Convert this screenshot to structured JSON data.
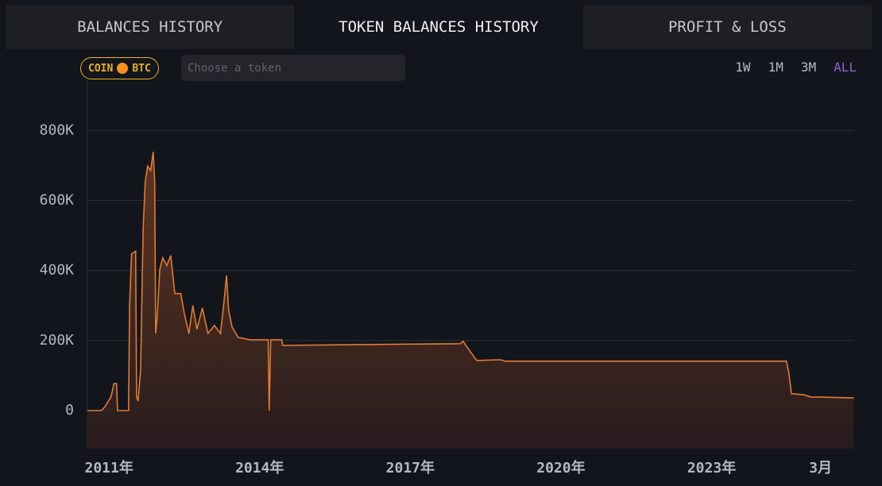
{
  "tabs": [
    "BALANCES HISTORY",
    "TOKEN BALANCES HISTORY",
    "PROFIT & LOSS"
  ],
  "badge": {
    "label": "COIN",
    "coin": "BTC"
  },
  "search_placeholder": "Choose a token",
  "ranges": [
    "1W",
    "1M",
    "3M",
    "ALL"
  ],
  "chart_data": {
    "type": "area",
    "color": "#e07b35",
    "grid": true,
    "x": [
      2010.57,
      2010.85,
      2010.92,
      2011.04,
      2011.1,
      2011.15,
      2011.17,
      2011.39,
      2011.41,
      2011.45,
      2011.53,
      2011.55,
      2011.58,
      2011.63,
      2011.68,
      2011.72,
      2011.77,
      2011.83,
      2011.88,
      2011.91,
      2011.93,
      2011.96,
      2012.01,
      2012.07,
      2012.15,
      2012.23,
      2012.31,
      2012.43,
      2012.5,
      2012.59,
      2012.67,
      2012.75,
      2012.86,
      2012.97,
      2013.1,
      2013.22,
      2013.29,
      2013.34,
      2013.38,
      2013.45,
      2013.57,
      2013.81,
      2014.05,
      2014.17,
      2014.19,
      2014.22,
      2014.44,
      2014.46,
      2016.42,
      2018.0,
      2018.05,
      2018.16,
      2018.32,
      2018.79,
      2018.89,
      2024.49,
      2024.54,
      2024.59,
      2024.84,
      2024.97,
      2025.83
    ],
    "values": [
      0,
      0,
      11000,
      39000,
      77000,
      77000,
      0,
      0,
      300000,
      448000,
      455000,
      39000,
      27000,
      118000,
      516000,
      652000,
      698000,
      686000,
      739000,
      652000,
      220000,
      266000,
      402000,
      436000,
      414000,
      443000,
      334000,
      334000,
      277000,
      220000,
      300000,
      232000,
      293000,
      220000,
      243000,
      220000,
      311000,
      386000,
      289000,
      239000,
      209000,
      202000,
      202000,
      202000,
      0,
      202000,
      202000,
      186000,
      189000,
      191000,
      198000,
      175000,
      143000,
      145000,
      141000,
      141000,
      107000,
      48000,
      45000,
      39000,
      36000
    ],
    "xlim": [
      2010.57,
      2025.84
    ],
    "xticks": [
      {
        "value": 2011,
        "label": "2011年"
      },
      {
        "value": 2014,
        "label": "2014年"
      },
      {
        "value": 2017,
        "label": "2017年"
      },
      {
        "value": 2020,
        "label": "2020年"
      },
      {
        "value": 2023,
        "label": "2023年"
      },
      {
        "value": 2025.17,
        "label": "3月"
      }
    ],
    "ylim": [
      -109000,
      946000
    ],
    "yticks": [
      0,
      {
        "value": 200000,
        "label": "200K"
      },
      {
        "value": 400000,
        "label": "400K"
      },
      {
        "value": 600000,
        "label": "600K"
      },
      {
        "value": 800000,
        "label": "800K"
      }
    ]
  }
}
